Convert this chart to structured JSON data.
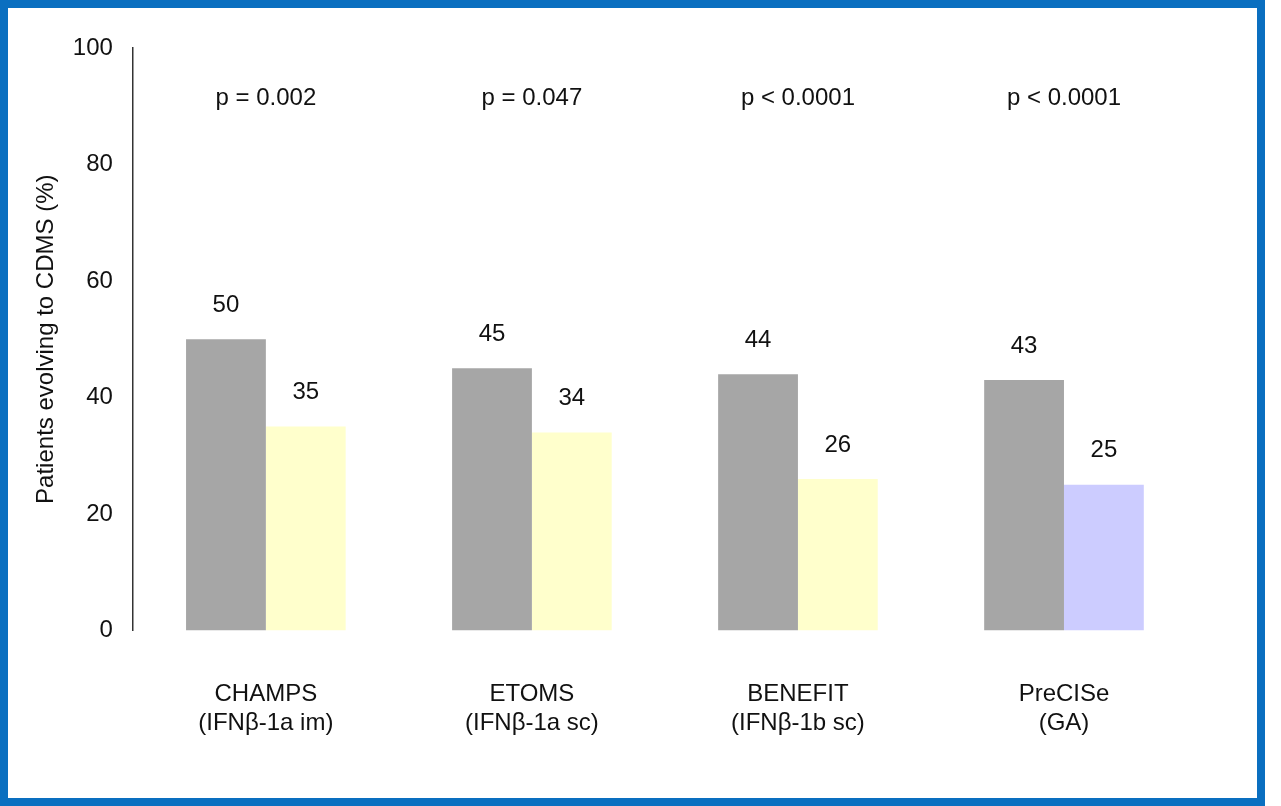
{
  "chart_data": {
    "type": "bar",
    "ylabel": "Patients evolving to CDMS (%)",
    "categories": [
      "CHAMPS\n(IFNβ-1a im)",
      "ETOMS\n(IFNβ-1a sc)",
      "BENEFIT\n(IFNβ-1b sc)",
      "PreCISe\n(GA)"
    ],
    "series": [
      {
        "color": "#a6a6a6",
        "values": [
          50,
          45,
          44,
          43
        ]
      },
      {
        "colors": [
          "#ffffcc",
          "#ffffcc",
          "#ffffcc",
          "#ccccff"
        ],
        "values": [
          35,
          34,
          26,
          25
        ]
      }
    ],
    "ylim": [
      0,
      100
    ],
    "yticks": [
      0,
      20,
      40,
      60,
      80,
      100
    ],
    "grid": false,
    "legend": false,
    "data_labels": true,
    "annotations": [
      "p = 0.002",
      "p = 0.047",
      "p < 0.0001",
      "p < 0.0001"
    ]
  }
}
